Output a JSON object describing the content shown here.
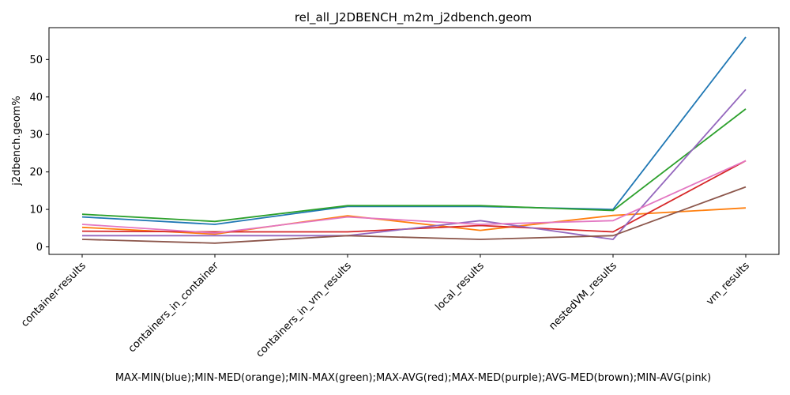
{
  "chart_data": {
    "type": "line",
    "title": "rel_all_J2DBENCH_m2m_j2dbench.geom",
    "xlabel": "MAX-MIN(blue);MIN-MED(orange);MIN-MAX(green);MAX-AVG(red);MAX-MED(purple);AVG-MED(brown);MIN-AVG(pink)",
    "ylabel": "j2dbench.geom%",
    "categories": [
      "container-results",
      "containers_in_container",
      "containers_in_vm_results",
      "local_results",
      "nestedVM_results",
      "vm_results"
    ],
    "ylim": [
      -2,
      58.5
    ],
    "yticks": [
      0,
      10,
      20,
      30,
      40,
      50
    ],
    "grid": false,
    "series": [
      {
        "color": "#1f77b4",
        "values": [
          8.0,
          6.0,
          10.8,
          10.8,
          10.0,
          56.0
        ]
      },
      {
        "color": "#ff7f0e",
        "values": [
          5.2,
          3.4,
          8.3,
          4.4,
          8.4,
          10.4
        ]
      },
      {
        "color": "#2ca02c",
        "values": [
          8.7,
          6.8,
          11.0,
          11.0,
          9.7,
          36.8
        ]
      },
      {
        "color": "#d62728",
        "values": [
          4.2,
          4.0,
          4.0,
          5.7,
          4.0,
          23.0
        ]
      },
      {
        "color": "#9467bd",
        "values": [
          3.0,
          3.0,
          3.0,
          7.0,
          2.0,
          42.0
        ]
      },
      {
        "color": "#8c564b",
        "values": [
          2.0,
          1.0,
          3.0,
          2.0,
          3.0,
          16.0
        ]
      },
      {
        "color": "#e377c2",
        "values": [
          6.0,
          3.7,
          8.0,
          6.0,
          7.0,
          23.0
        ]
      }
    ]
  }
}
